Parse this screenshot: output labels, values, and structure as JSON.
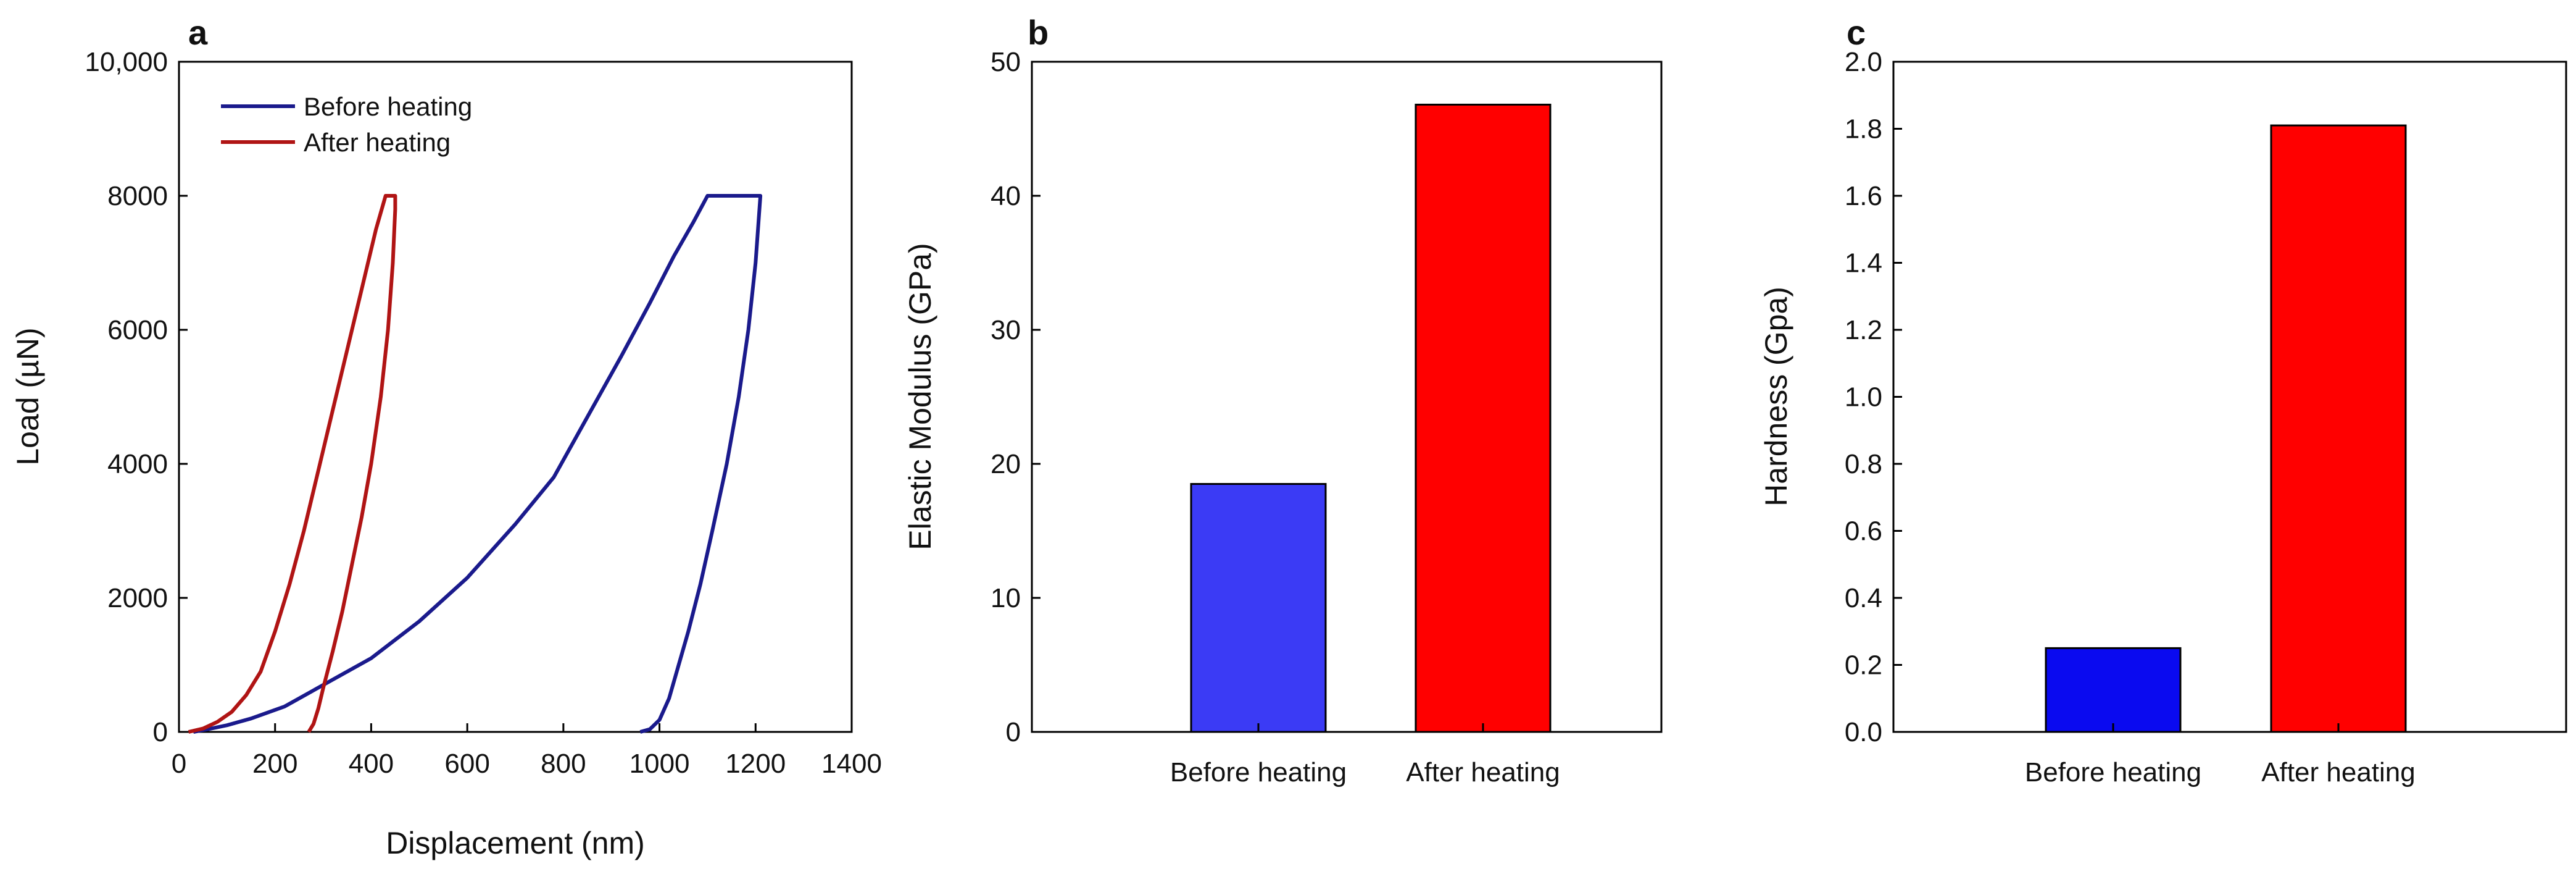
{
  "colors": {
    "before_line": "#1a1a8c",
    "after_line": "#b01414",
    "bar_b_before": "#3b3bf5",
    "bar_b_after": "#ff0000",
    "bar_c_before": "#0a0af0",
    "bar_c_after": "#ff0000"
  },
  "chart_data": [
    {
      "panel": "a",
      "type": "line",
      "xlabel": "Displacement (nm)",
      "ylabel": "Load (µN)",
      "xlim": [
        0,
        1400
      ],
      "ylim": [
        0,
        10000
      ],
      "xticks": [
        "0",
        "200",
        "400",
        "600",
        "800",
        "1000",
        "1200",
        "1400"
      ],
      "yticks": [
        "0",
        "2000",
        "4000",
        "6000",
        "8000",
        "10,000"
      ],
      "legend_position": "top-left",
      "series": [
        {
          "name": "Before heating",
          "color_key": "before_line",
          "x": [
            30,
            60,
            100,
            150,
            220,
            300,
            400,
            500,
            600,
            700,
            780,
            850,
            920,
            980,
            1030,
            1070,
            1100,
            1210,
            1200,
            1185,
            1165,
            1140,
            1110,
            1085,
            1060,
            1040,
            1020,
            1000,
            980,
            960
          ],
          "y": [
            0,
            40,
            100,
            200,
            380,
            700,
            1100,
            1650,
            2300,
            3100,
            3800,
            4700,
            5600,
            6400,
            7100,
            7600,
            8000,
            8000,
            7000,
            6000,
            5000,
            4000,
            3000,
            2200,
            1500,
            1000,
            500,
            180,
            40,
            0
          ]
        },
        {
          "name": "After heating",
          "color_key": "after_line",
          "x": [
            20,
            50,
            80,
            110,
            140,
            170,
            200,
            230,
            260,
            290,
            320,
            350,
            380,
            410,
            430,
            450,
            450,
            445,
            435,
            420,
            400,
            380,
            360,
            340,
            320,
            300,
            290,
            280,
            270
          ],
          "y": [
            0,
            50,
            150,
            300,
            550,
            900,
            1500,
            2200,
            3000,
            3900,
            4800,
            5700,
            6600,
            7500,
            8000,
            8000,
            7800,
            7000,
            6000,
            5000,
            4000,
            3200,
            2500,
            1800,
            1200,
            650,
            350,
            120,
            0
          ]
        }
      ]
    },
    {
      "panel": "b",
      "type": "bar",
      "ylabel": "Elastic Modulus (GPa)",
      "ylim": [
        0,
        50
      ],
      "yticks": [
        "0",
        "10",
        "20",
        "30",
        "40",
        "50"
      ],
      "categories": [
        "Before heating",
        "After heating"
      ],
      "values": [
        18.5,
        46.8
      ],
      "color_keys": [
        "bar_b_before",
        "bar_b_after"
      ]
    },
    {
      "panel": "c",
      "type": "bar",
      "ylabel": "Hardness (Gpa)",
      "ylim": [
        0,
        2.0
      ],
      "yticks": [
        "0.0",
        "0.2",
        "0.4",
        "0.6",
        "0.8",
        "1.0",
        "1.2",
        "1.4",
        "1.6",
        "1.8",
        "2.0"
      ],
      "categories": [
        "Before heating",
        "After heating"
      ],
      "values": [
        0.25,
        1.81
      ],
      "color_keys": [
        "bar_c_before",
        "bar_c_after"
      ]
    }
  ]
}
